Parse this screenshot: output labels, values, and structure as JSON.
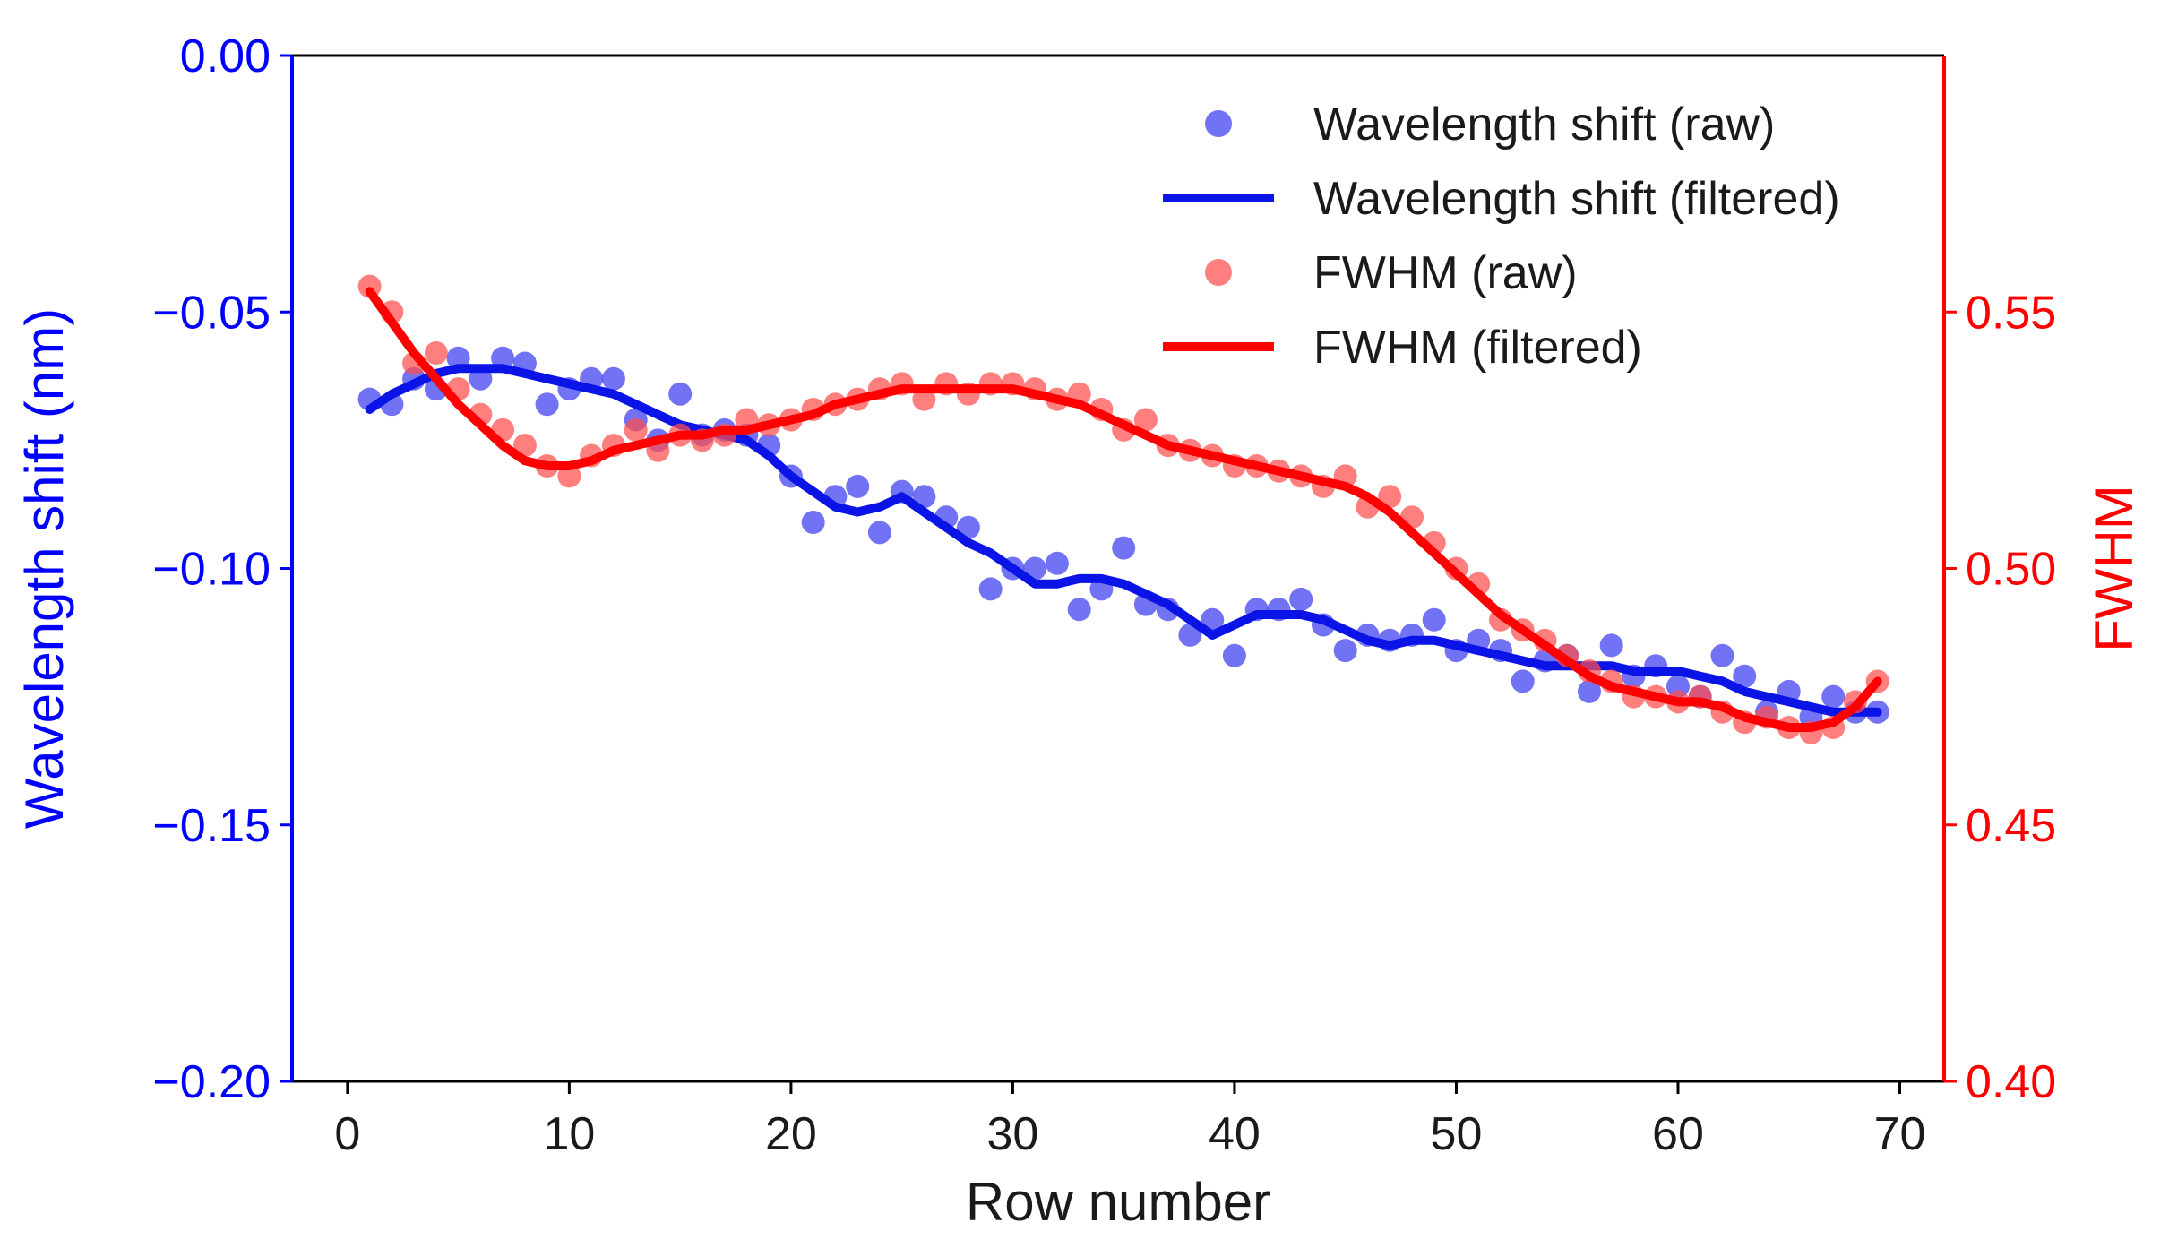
{
  "chart_data": {
    "type": "scatter",
    "xlabel": "Row number",
    "ylabel_left": "Wavelength shift (nm)",
    "ylabel_right": "FWHM",
    "xlim": [
      -2.5,
      72
    ],
    "ylim_left": [
      -0.2,
      0.0
    ],
    "ylim_right": [
      0.4,
      0.6
    ],
    "x_ticks": [
      0,
      10,
      20,
      30,
      40,
      50,
      60,
      70
    ],
    "x_tick_labels": [
      "0",
      "10",
      "20",
      "30",
      "40",
      "50",
      "60",
      "70"
    ],
    "y_left_ticks": [
      0.0,
      -0.05,
      -0.1,
      -0.15,
      -0.2
    ],
    "y_left_tick_labels": [
      "0.00",
      "−0.05",
      "−0.10",
      "−0.15",
      "−0.20"
    ],
    "y_right_ticks": [
      0.55,
      0.5,
      0.45,
      0.4
    ],
    "y_right_tick_labels": [
      "0.55",
      "0.50",
      "0.45",
      "0.40"
    ],
    "grid": false,
    "legend_position": "top-right",
    "colors": {
      "left_axis": "#0000ff",
      "right_axis": "#ff0000",
      "wavelength_raw": "#3b3bf0",
      "wavelength_filtered": "#0a14e6",
      "fwhm_raw": "#ff4d4d",
      "fwhm_filtered": "#ff0000"
    },
    "x": [
      1,
      2,
      3,
      4,
      5,
      6,
      7,
      8,
      9,
      10,
      11,
      12,
      13,
      14,
      15,
      16,
      17,
      18,
      19,
      20,
      21,
      22,
      23,
      24,
      25,
      26,
      27,
      28,
      29,
      30,
      31,
      32,
      33,
      34,
      35,
      36,
      37,
      38,
      39,
      40,
      41,
      42,
      43,
      44,
      45,
      46,
      47,
      48,
      49,
      50,
      51,
      52,
      53,
      54,
      55,
      56,
      57,
      58,
      59,
      60,
      61,
      62,
      63,
      64,
      65,
      66,
      67,
      68,
      69
    ],
    "series": [
      {
        "name": "Wavelength shift (raw)",
        "axis": "left",
        "kind": "scatter",
        "values": [
          -0.067,
          -0.068,
          -0.063,
          -0.065,
          -0.059,
          -0.063,
          -0.059,
          -0.06,
          -0.068,
          -0.065,
          -0.063,
          -0.063,
          -0.071,
          -0.075,
          -0.066,
          -0.074,
          -0.073,
          -0.074,
          -0.076,
          -0.082,
          -0.091,
          -0.086,
          -0.084,
          -0.093,
          -0.085,
          -0.086,
          -0.09,
          -0.092,
          -0.104,
          -0.1,
          -0.1,
          -0.099,
          -0.108,
          -0.104,
          -0.096,
          -0.107,
          -0.108,
          -0.113,
          -0.11,
          -0.117,
          -0.108,
          -0.108,
          -0.106,
          -0.111,
          -0.116,
          -0.113,
          -0.114,
          -0.113,
          -0.11,
          -0.116,
          -0.114,
          -0.116,
          -0.122,
          -0.118,
          -0.117,
          -0.124,
          -0.115,
          -0.121,
          -0.119,
          -0.123,
          -0.125,
          -0.117,
          -0.121,
          -0.128,
          -0.124,
          -0.129,
          -0.125,
          -0.128,
          -0.128
        ]
      },
      {
        "name": "Wavelength shift (filtered)",
        "axis": "left",
        "kind": "line",
        "values": [
          -0.069,
          -0.066,
          -0.064,
          -0.062,
          -0.061,
          -0.061,
          -0.061,
          -0.062,
          -0.063,
          -0.064,
          -0.065,
          -0.066,
          -0.068,
          -0.07,
          -0.072,
          -0.073,
          -0.074,
          -0.075,
          -0.078,
          -0.082,
          -0.085,
          -0.088,
          -0.089,
          -0.088,
          -0.086,
          -0.089,
          -0.092,
          -0.095,
          -0.097,
          -0.1,
          -0.103,
          -0.103,
          -0.102,
          -0.102,
          -0.103,
          -0.105,
          -0.107,
          -0.11,
          -0.113,
          -0.111,
          -0.109,
          -0.109,
          -0.109,
          -0.11,
          -0.112,
          -0.114,
          -0.115,
          -0.114,
          -0.114,
          -0.115,
          -0.116,
          -0.117,
          -0.118,
          -0.119,
          -0.119,
          -0.119,
          -0.119,
          -0.12,
          -0.12,
          -0.12,
          -0.121,
          -0.122,
          -0.124,
          -0.125,
          -0.126,
          -0.127,
          -0.128,
          -0.128,
          -0.128
        ]
      },
      {
        "name": "FWHM (raw)",
        "axis": "right",
        "kind": "scatter",
        "values": [
          0.555,
          0.55,
          0.54,
          0.542,
          0.535,
          0.53,
          0.527,
          0.524,
          0.52,
          0.518,
          0.522,
          0.524,
          0.527,
          0.523,
          0.526,
          0.525,
          0.526,
          0.529,
          0.528,
          0.529,
          0.531,
          0.532,
          0.533,
          0.535,
          0.536,
          0.533,
          0.536,
          0.534,
          0.536,
          0.536,
          0.535,
          0.533,
          0.534,
          0.531,
          0.527,
          0.529,
          0.524,
          0.523,
          0.522,
          0.52,
          0.52,
          0.519,
          0.518,
          0.516,
          0.518,
          0.512,
          0.514,
          0.51,
          0.505,
          0.5,
          0.497,
          0.49,
          0.488,
          0.486,
          0.483,
          0.48,
          0.478,
          0.475,
          0.475,
          0.474,
          0.475,
          0.472,
          0.47,
          0.471,
          0.469,
          0.468,
          0.469,
          0.474,
          0.478
        ]
      },
      {
        "name": "FWHM (filtered)",
        "axis": "right",
        "kind": "line",
        "values": [
          0.554,
          0.548,
          0.542,
          0.537,
          0.532,
          0.528,
          0.524,
          0.521,
          0.52,
          0.52,
          0.521,
          0.523,
          0.524,
          0.525,
          0.526,
          0.526,
          0.527,
          0.527,
          0.528,
          0.529,
          0.53,
          0.532,
          0.533,
          0.534,
          0.535,
          0.535,
          0.535,
          0.535,
          0.535,
          0.535,
          0.534,
          0.533,
          0.532,
          0.53,
          0.528,
          0.526,
          0.524,
          0.523,
          0.522,
          0.521,
          0.52,
          0.519,
          0.518,
          0.517,
          0.516,
          0.514,
          0.511,
          0.507,
          0.503,
          0.499,
          0.495,
          0.491,
          0.488,
          0.485,
          0.482,
          0.479,
          0.477,
          0.476,
          0.475,
          0.474,
          0.474,
          0.473,
          0.471,
          0.47,
          0.469,
          0.469,
          0.47,
          0.473,
          0.478
        ]
      }
    ]
  }
}
